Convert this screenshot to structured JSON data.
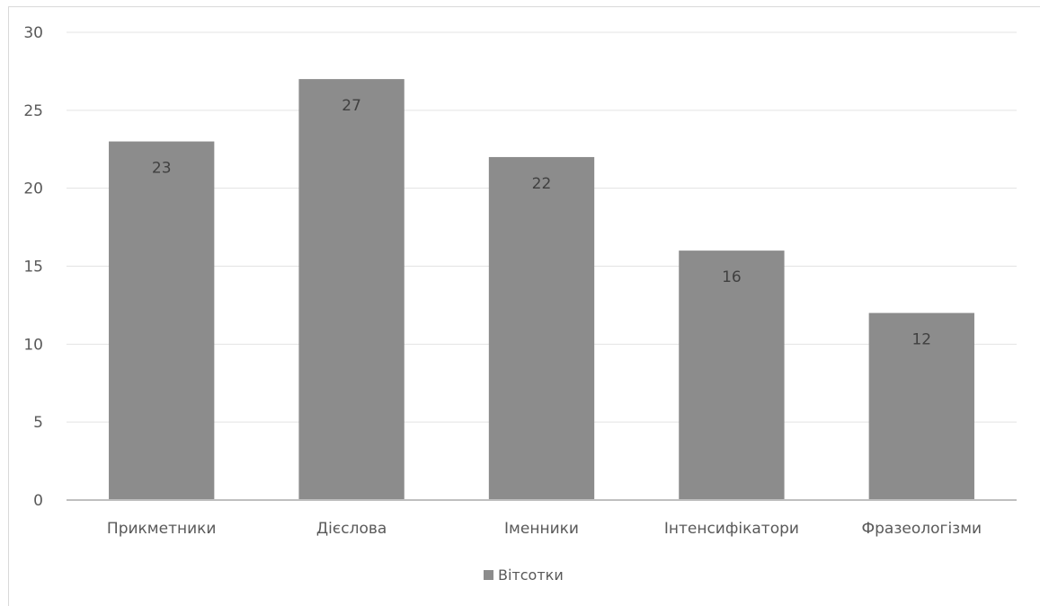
{
  "chart_data": {
    "type": "bar",
    "title": "",
    "xlabel": "",
    "ylabel": "",
    "categories": [
      "Прикметники",
      "Дієслова",
      "Іменники",
      "Інтенсифікатори",
      "Фразеологізми"
    ],
    "series": [
      {
        "name": "Вітсотки",
        "values": [
          23,
          27,
          22,
          16,
          12
        ]
      }
    ],
    "ylim": [
      0,
      30
    ],
    "yticks": [
      "0",
      "5",
      "10",
      "15",
      "20",
      "25",
      "30"
    ],
    "data_labels": [
      "23",
      "27",
      "22",
      "16",
      "12"
    ],
    "grid": true,
    "legend": "bottom",
    "bar_color": "#8c8c8c",
    "grid_color": "#e3e3e3",
    "axis_color": "#bfbfbf"
  }
}
